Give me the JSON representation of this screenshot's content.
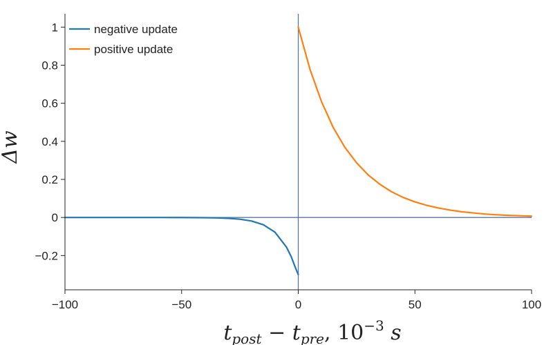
{
  "chart_data": {
    "type": "line",
    "xlabel": {
      "main": "t",
      "sub1": "post",
      "sep": " − ",
      "sub2": "pre",
      "suffix": ", 10",
      "exp": "−3",
      "unit": " s"
    },
    "ylabel": "Δw",
    "xlim": [
      -100,
      100
    ],
    "ylim": [
      -0.38,
      1.07
    ],
    "xticks": [
      -100,
      -50,
      0,
      50,
      100
    ],
    "xtick_labels": [
      "−100",
      "−50",
      "0",
      "50",
      "100"
    ],
    "yticks": [
      -0.2,
      0,
      0.2,
      0.4,
      0.6,
      0.8,
      1
    ],
    "ytick_labels": [
      "−0.2",
      "0",
      "0.2",
      "0.4",
      "0.6",
      "0.8",
      "1"
    ],
    "grid": false,
    "legend_position": "top-left",
    "reference_lines": {
      "horizontal_y": 0,
      "vertical_x": 0,
      "color": "#5b74a6"
    },
    "series": [
      {
        "name": "negative update",
        "color": "#1f77b4",
        "x": [
          -100,
          -90,
          -80,
          -70,
          -60,
          -50,
          -45,
          -40,
          -35,
          -30,
          -25,
          -20,
          -15,
          -10,
          -5,
          -3,
          -1,
          0
        ],
        "y": [
          0,
          0,
          0,
          0,
          -0.0001,
          -0.0003,
          -0.0006,
          -0.0011,
          -0.0022,
          -0.0045,
          -0.0092,
          -0.0187,
          -0.038,
          -0.077,
          -0.157,
          -0.207,
          -0.271,
          -0.3
        ]
      },
      {
        "name": "positive update",
        "color": "#ff7f0e",
        "x": [
          0,
          5,
          10,
          15,
          20,
          25,
          30,
          35,
          40,
          45,
          50,
          55,
          60,
          65,
          70,
          75,
          80,
          85,
          90,
          95,
          100
        ],
        "y": [
          1,
          0.779,
          0.607,
          0.472,
          0.368,
          0.287,
          0.223,
          0.174,
          0.135,
          0.105,
          0.082,
          0.064,
          0.05,
          0.039,
          0.03,
          0.024,
          0.018,
          0.014,
          0.011,
          0.009,
          0.007
        ]
      }
    ]
  }
}
